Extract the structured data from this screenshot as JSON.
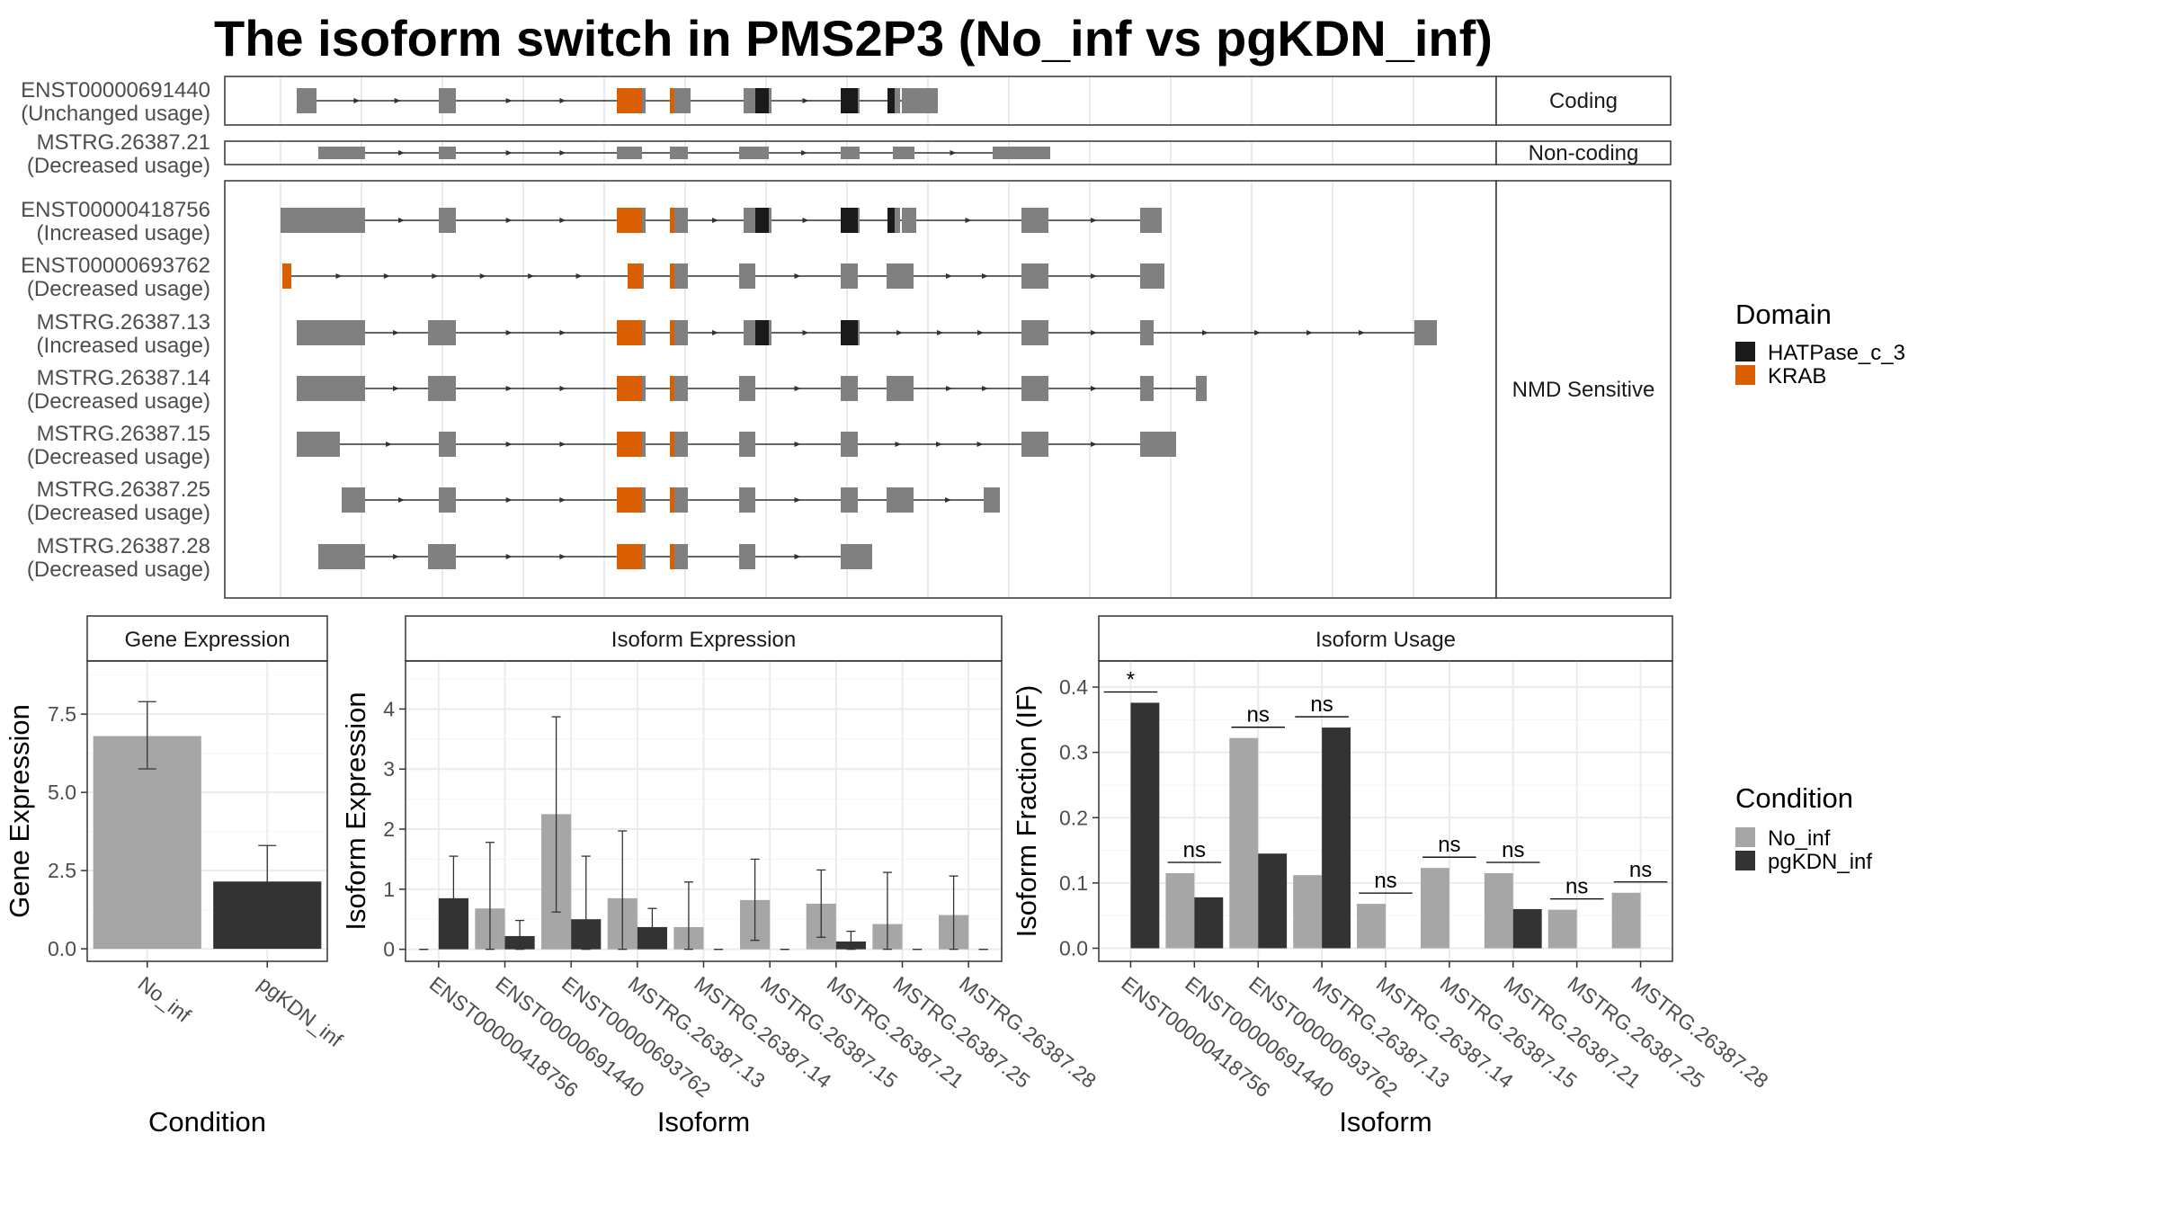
{
  "title": "The isoform switch in PMS2P3 (No_inf vs pgKDN_inf)",
  "colors": {
    "no_inf": "#a6a6a6",
    "pgkdn_inf": "#333333",
    "exon": "#808080",
    "domain_hatpase": "#1a1a1a",
    "domain_krab": "#d95f02"
  },
  "structure": {
    "groups": [
      {
        "label": "Coding",
        "isoforms": [
          {
            "id": "ENST00000691440",
            "status": "(Unchanged usage)"
          }
        ]
      },
      {
        "label": "Non-coding",
        "isoforms": [
          {
            "id": "MSTRG.26387.21",
            "status": "(Decreased usage)"
          }
        ]
      },
      {
        "label": "NMD Sensitive",
        "isoforms": [
          {
            "id": "ENST00000418756",
            "status": "(Increased usage)"
          },
          {
            "id": "ENST00000693762",
            "status": "(Decreased usage)"
          },
          {
            "id": "MSTRG.26387.13",
            "status": "(Increased usage)"
          },
          {
            "id": "MSTRG.26387.14",
            "status": "(Decreased usage)"
          },
          {
            "id": "MSTRG.26387.15",
            "status": "(Decreased usage)"
          },
          {
            "id": "MSTRG.26387.25",
            "status": "(Decreased usage)"
          },
          {
            "id": "MSTRG.26387.28",
            "status": "(Decreased usage)"
          }
        ]
      }
    ]
  },
  "legend_domain": {
    "title": "Domain",
    "items": [
      {
        "label": "HATPase_c_3",
        "color": "#1a1a1a"
      },
      {
        "label": "KRAB",
        "color": "#d95f02"
      }
    ]
  },
  "legend_condition": {
    "title": "Condition",
    "items": [
      {
        "label": "No_inf",
        "color": "#a6a6a6"
      },
      {
        "label": "pgKDN_inf",
        "color": "#333333"
      }
    ]
  },
  "chart_data": [
    {
      "type": "bar",
      "title": "Gene Expression",
      "xlabel": "Condition",
      "ylabel": "Gene Expression",
      "categories": [
        "No_inf",
        "pgKDN_inf"
      ],
      "values": [
        6.8,
        2.15
      ],
      "error_low": [
        5.75,
        1.0
      ],
      "error_high": [
        7.9,
        3.3
      ],
      "ylim": [
        -0.4,
        9.2
      ],
      "yticks": [
        "0.0",
        "2.5",
        "5.0",
        "7.5"
      ]
    },
    {
      "type": "bar",
      "title": "Isoform Expression",
      "xlabel": "Isoform",
      "ylabel": "Isoform Expression",
      "ylim": [
        -0.2,
        4.8
      ],
      "yticks": [
        "0",
        "1",
        "2",
        "3",
        "4"
      ],
      "categories": [
        "ENST00000418756",
        "ENST00000691440",
        "ENST00000693762",
        "MSTRG.26387.13",
        "MSTRG.26387.14",
        "MSTRG.26387.15",
        "MSTRG.26387.21",
        "MSTRG.26387.25",
        "MSTRG.26387.28"
      ],
      "series": [
        {
          "name": "No_inf",
          "values": [
            0.0,
            0.68,
            2.25,
            0.85,
            0.37,
            0.82,
            0.76,
            0.42,
            0.57
          ],
          "error_low": [
            0.0,
            0.0,
            0.62,
            0.0,
            0.0,
            0.15,
            0.2,
            0.0,
            0.0
          ],
          "error_high": [
            0.0,
            1.78,
            3.87,
            1.97,
            1.12,
            1.5,
            1.32,
            1.28,
            1.22
          ]
        },
        {
          "name": "pgKDN_inf",
          "values": [
            0.85,
            0.22,
            0.5,
            0.37,
            0.0,
            0.0,
            0.13,
            0.0,
            0.0
          ],
          "error_low": [
            0.15,
            0.0,
            0.0,
            0.05,
            0.0,
            0.0,
            0.0,
            0.0,
            0.0
          ],
          "error_high": [
            1.55,
            0.48,
            1.55,
            0.68,
            0.0,
            0.0,
            0.3,
            0.0,
            0.0
          ]
        }
      ]
    },
    {
      "type": "bar",
      "title": "Isoform Usage",
      "xlabel": "Isoform",
      "ylabel": "Isoform Fraction (IF)",
      "ylim": [
        -0.02,
        0.44
      ],
      "yticks": [
        "0.0",
        "0.1",
        "0.2",
        "0.3",
        "0.4"
      ],
      "categories": [
        "ENST00000418756",
        "ENST00000691440",
        "ENST00000693762",
        "MSTRG.26387.13",
        "MSTRG.26387.14",
        "MSTRG.26387.15",
        "MSTRG.26387.21",
        "MSTRG.26387.25",
        "MSTRG.26387.28"
      ],
      "series": [
        {
          "name": "No_inf",
          "values": [
            0.0,
            0.115,
            0.322,
            0.112,
            0.068,
            0.123,
            0.115,
            0.059,
            0.085
          ]
        },
        {
          "name": "pgKDN_inf",
          "values": [
            0.376,
            0.078,
            0.145,
            0.338,
            0.0,
            0.0,
            0.06,
            0.0,
            0.0
          ]
        }
      ],
      "significance": [
        "*",
        "ns",
        "ns",
        "ns",
        "ns",
        "ns",
        "ns",
        "ns",
        "ns"
      ]
    }
  ]
}
